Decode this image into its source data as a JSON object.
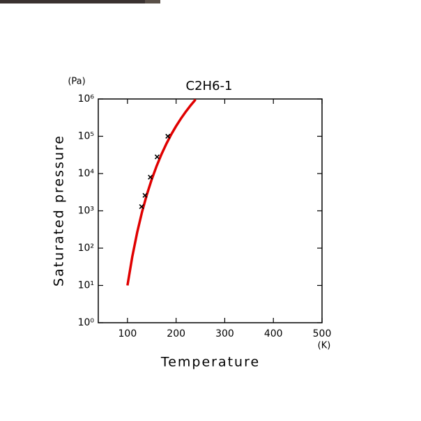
{
  "chart_data": {
    "type": "line",
    "title": "C2H6-1",
    "x_label": "Temperature",
    "x_unit": "(K)",
    "y_label": "Saturated pressure",
    "y_unit": "(Pa)",
    "xlim": [
      40,
      500
    ],
    "xticks": [
      100,
      200,
      300,
      400,
      500
    ],
    "ylim": [
      1,
      1000000
    ],
    "log_y": true,
    "yticks": [
      {
        "value": 1,
        "label": "10⁰"
      },
      {
        "value": 10,
        "label": "10¹"
      },
      {
        "value": 100,
        "label": "10²"
      },
      {
        "value": 1000,
        "label": "10³"
      },
      {
        "value": 10000,
        "label": "10⁴"
      },
      {
        "value": 100000,
        "label": "10⁵"
      },
      {
        "value": 1000000,
        "label": "10⁶"
      }
    ],
    "curve": {
      "color": "#e00000",
      "x": [
        100,
        110,
        120,
        130,
        140,
        150,
        160,
        170,
        180,
        190,
        200,
        210,
        220,
        230,
        240
      ],
      "values": [
        10,
        60,
        265,
        940,
        2760,
        7050,
        16000,
        33000,
        62800,
        112000,
        187000,
        299000,
        458000,
        676000,
        966000
      ]
    },
    "points": {
      "color": "#000000",
      "x": [
        129,
        136,
        147,
        161,
        183
      ],
      "values": [
        1300,
        2600,
        8000,
        28000,
        100000
      ]
    }
  }
}
